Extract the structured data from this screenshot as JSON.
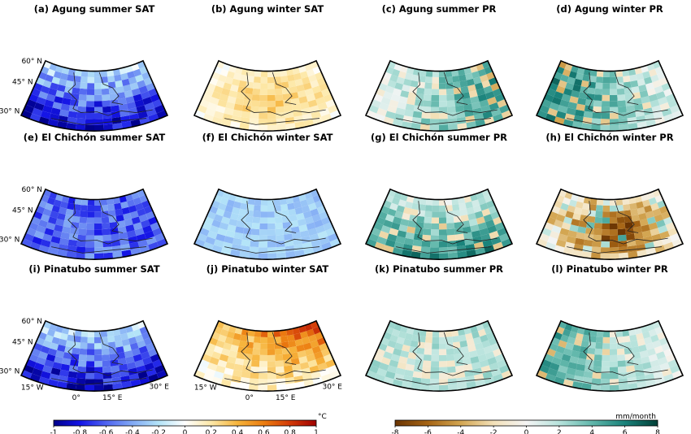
{
  "chart_data": {
    "type": "heatmap",
    "panels": [
      {
        "label": "(a)",
        "title": "Agung summer SAT",
        "field": "sat",
        "sign": -1,
        "strength": 0.85,
        "pattern": "south"
      },
      {
        "label": "(b)",
        "title": "Agung winter SAT",
        "field": "sat",
        "sign": 1,
        "strength": 0.35,
        "pattern": "center"
      },
      {
        "label": "(c)",
        "title": "Agung summer PR",
        "field": "pr",
        "sign": 1,
        "strength": 0.6,
        "pattern": "east"
      },
      {
        "label": "(d)",
        "title": "Agung winter PR",
        "field": "pr",
        "sign": 1,
        "strength": 0.7,
        "pattern": "west"
      },
      {
        "label": "(e)",
        "title": "El Chichón summer SAT",
        "field": "sat",
        "sign": -1,
        "strength": 0.75,
        "pattern": "all"
      },
      {
        "label": "(f)",
        "title": "El Chichón winter SAT",
        "field": "sat",
        "sign": -1,
        "strength": 0.35,
        "pattern": "all"
      },
      {
        "label": "(g)",
        "title": "El Chichón summer PR",
        "field": "pr",
        "sign": 1,
        "strength": 0.65,
        "pattern": "south"
      },
      {
        "label": "(h)",
        "title": "El Chichón winter PR",
        "field": "pr",
        "sign": -1,
        "strength": 0.9,
        "pattern": "center"
      },
      {
        "label": "(i)",
        "title": "Pinatubo summer SAT",
        "field": "sat",
        "sign": -1,
        "strength": 0.85,
        "pattern": "south"
      },
      {
        "label": "(j)",
        "title": "Pinatubo winter SAT",
        "field": "sat",
        "sign": 1,
        "strength": 0.6,
        "pattern": "north"
      },
      {
        "label": "(k)",
        "title": "Pinatubo summer PR",
        "field": "pr",
        "sign": 1,
        "strength": 0.35,
        "pattern": "all"
      },
      {
        "label": "(l)",
        "title": "Pinatubo winter PR",
        "field": "pr",
        "sign": 1,
        "strength": 0.55,
        "pattern": "west"
      }
    ],
    "lat_ticks": [
      "60° N",
      "45° N",
      "30° N"
    ],
    "lon_ticks": [
      "15° W",
      "0°",
      "15° E",
      "30° E"
    ],
    "colorbars": [
      {
        "field": "sat",
        "unit": "°C",
        "range": [
          -1,
          1
        ],
        "ticks": [
          "-1",
          "-0.8",
          "-0.6",
          "-0.4",
          "-0.2",
          "0",
          "0.2",
          "0.4",
          "0.6",
          "0.8",
          "1"
        ],
        "colors": [
          "#00008c",
          "#1414e6",
          "#5064f0",
          "#82aaf5",
          "#b4e4f8",
          "#ffffff",
          "#fde8a8",
          "#f6b43c",
          "#ec7d10",
          "#d23a08",
          "#a00000"
        ]
      },
      {
        "field": "pr",
        "unit": "mm/month",
        "range": [
          -8,
          8
        ],
        "ticks": [
          "-8",
          "-6",
          "-4",
          "-2",
          "0",
          "2",
          "4",
          "6",
          "8"
        ],
        "colors": [
          "#6b3503",
          "#a66414",
          "#d3a652",
          "#f3e1b9",
          "#f5f5f5",
          "#b7e3dc",
          "#61b7ab",
          "#19827a",
          "#013f37"
        ]
      }
    ]
  }
}
